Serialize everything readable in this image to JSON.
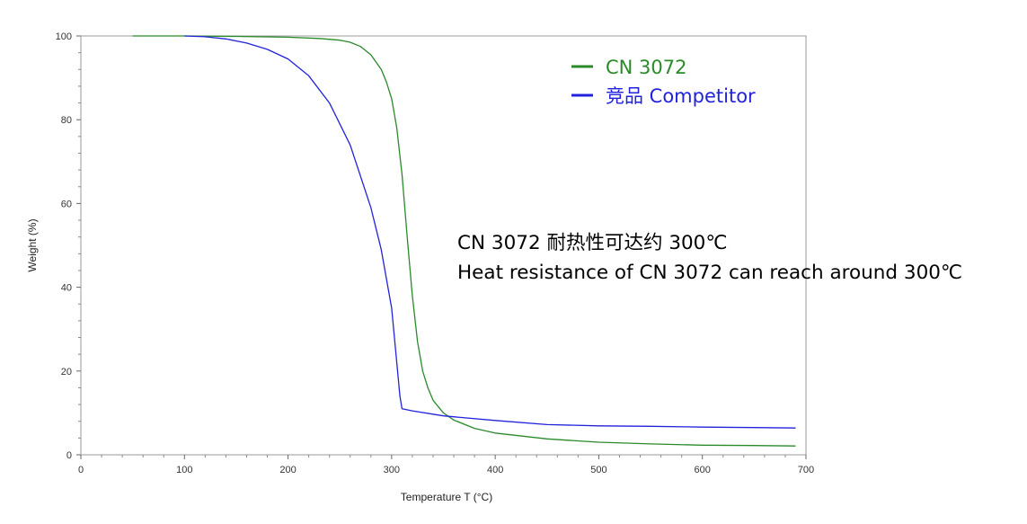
{
  "chart_data": {
    "type": "line",
    "xlabel": "Temperature T (°C)",
    "ylabel": "Weight (%)",
    "xlim": [
      0,
      700
    ],
    "ylim": [
      0,
      100
    ],
    "xticks": [
      0,
      100,
      200,
      300,
      400,
      500,
      600,
      700
    ],
    "yticks": [
      0,
      20,
      40,
      60,
      80,
      100
    ],
    "grid": false,
    "legend_position": "top-right",
    "series": [
      {
        "name": "CN 3072",
        "color": "#2a8a2a",
        "x": [
          50,
          100,
          150,
          200,
          230,
          250,
          260,
          270,
          280,
          290,
          295,
          300,
          305,
          310,
          315,
          320,
          325,
          330,
          335,
          340,
          350,
          360,
          380,
          400,
          450,
          500,
          550,
          600,
          650,
          690
        ],
        "y": [
          100,
          100,
          99.9,
          99.7,
          99.4,
          99,
          98.5,
          97.5,
          95.5,
          92,
          89,
          85,
          78,
          67,
          52,
          38,
          27,
          20,
          16,
          13,
          10,
          8.3,
          6.3,
          5.2,
          3.8,
          3.0,
          2.6,
          2.3,
          2.2,
          2.1
        ]
      },
      {
        "name": "竞品 Competitor",
        "color": "#2222dd",
        "x": [
          100,
          120,
          140,
          160,
          180,
          200,
          220,
          240,
          260,
          280,
          290,
          300,
          305,
          308,
          310,
          320,
          350,
          400,
          450,
          500,
          550,
          600,
          650,
          690
        ],
        "y": [
          100,
          99.8,
          99.3,
          98.3,
          96.8,
          94.5,
          90.5,
          84,
          74,
          59,
          49,
          35,
          22,
          14,
          11,
          10.5,
          9.3,
          8.2,
          7.2,
          6.9,
          6.8,
          6.6,
          6.5,
          6.4
        ]
      }
    ],
    "annotations": [
      "CN 3072 耐热性可达约 300℃",
      "Heat resistance of CN 3072 can reach around 300℃"
    ]
  }
}
